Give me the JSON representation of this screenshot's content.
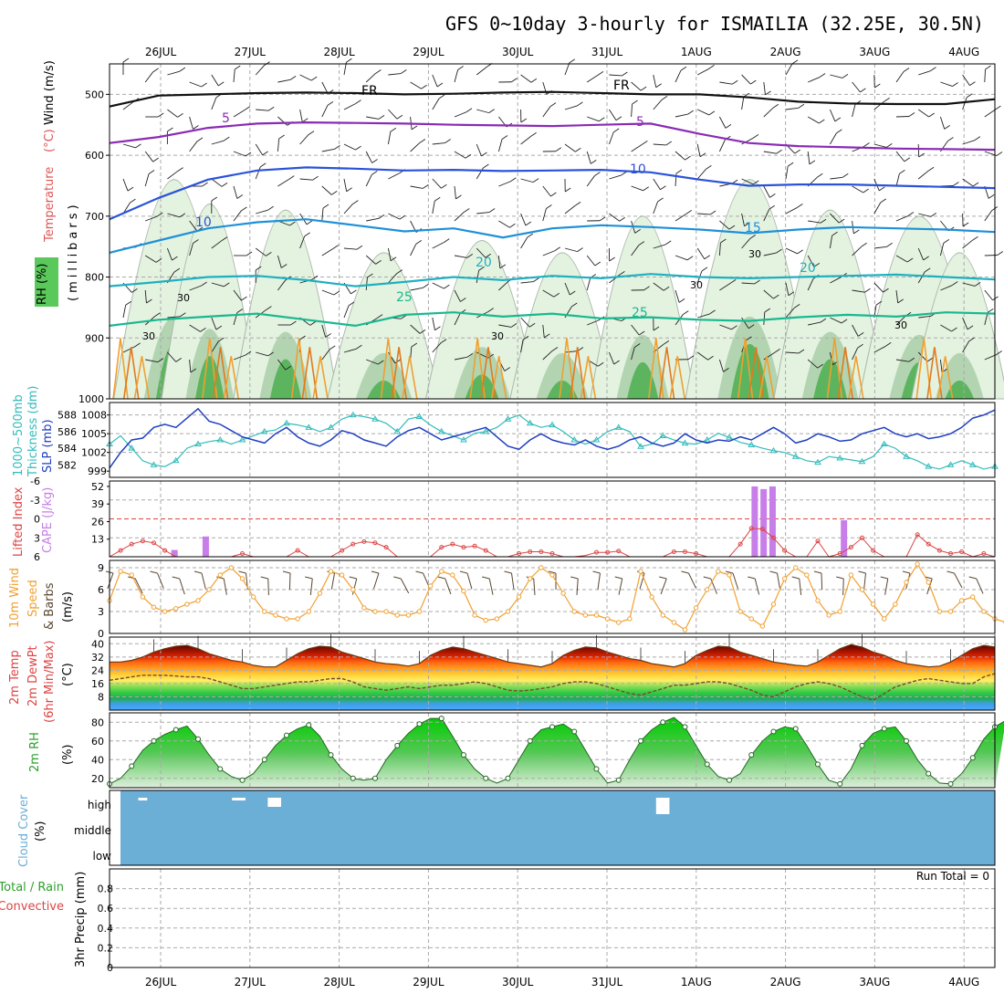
{
  "title": "GFS 0~10day 3-hourly for ISMAILIA (32.25E, 30.5N)",
  "colors": {
    "frame": "#000000",
    "grid": "#999999",
    "cloud_bg": "#6baed6",
    "wind_orange": "#f0a030",
    "barb": "#5a4632",
    "rh_green": "#2ca02c",
    "slp": "#1f3fbf",
    "thick": "#33bbbb",
    "cape": "#c77ee8",
    "li": "#dd4444"
  },
  "dates": [
    "26JUL",
    "27JUL",
    "28JUL",
    "29JUL",
    "30JUL",
    "31JUL",
    "1AUG",
    "2AUG",
    "3AUG",
    "4AUG"
  ],
  "chart_data": [
    {
      "type": "contour",
      "panel": "upper-air",
      "title": "Temperature (°C) / Wind (m/s) / RH (%)",
      "ylabels": [
        "Temperature",
        "(°C)",
        "Wind (m/s)",
        "RH (%)",
        "(millibars)"
      ],
      "yticks": [
        500,
        600,
        700,
        800,
        900,
        1000
      ],
      "ylim": [
        450,
        1000
      ],
      "contour_labels": [
        "FR",
        "FR",
        "5",
        "5",
        "10",
        "10",
        "15",
        "20",
        "20",
        "25",
        "25",
        "30",
        "30",
        "30",
        "30",
        "30",
        "30"
      ],
      "isotherms": [
        {
          "name": "FR",
          "color": "#111111",
          "p": [
            520,
            502,
            500,
            498,
            497,
            498,
            500,
            499,
            497,
            496,
            498,
            500,
            500,
            505,
            512,
            515,
            516,
            516,
            508
          ]
        },
        {
          "name": "5",
          "color": "#8a2bb5",
          "p": [
            580,
            570,
            555,
            548,
            546,
            547,
            548,
            550,
            551,
            552,
            550,
            548,
            565,
            580,
            585,
            587,
            589,
            590,
            591
          ]
        },
        {
          "name": "10",
          "color": "#2a52d8",
          "p": [
            705,
            670,
            640,
            625,
            620,
            622,
            625,
            624,
            626,
            625,
            624,
            628,
            640,
            650,
            648,
            648,
            650,
            652,
            654
          ]
        },
        {
          "name": "15",
          "color": "#1e90d8",
          "p": [
            760,
            740,
            720,
            710,
            705,
            715,
            725,
            720,
            735,
            720,
            715,
            718,
            722,
            728,
            722,
            718,
            720,
            722,
            726
          ]
        },
        {
          "name": "20",
          "color": "#1fb0c0",
          "p": [
            815,
            808,
            800,
            798,
            805,
            815,
            808,
            800,
            805,
            798,
            802,
            795,
            800,
            802,
            800,
            798,
            796,
            800,
            804
          ]
        },
        {
          "name": "25",
          "color": "#19b890",
          "p": [
            880,
            870,
            865,
            860,
            870,
            880,
            862,
            858,
            865,
            860,
            868,
            866,
            870,
            872,
            866,
            862,
            865,
            858,
            860
          ]
        }
      ]
    },
    {
      "type": "line",
      "panel": "slp-thickness",
      "ylabels": [
        "1000~500mb",
        "Thickness (dm)",
        "SLP (mb)"
      ],
      "left_ticks": [
        "588",
        "586",
        "584",
        "582"
      ],
      "right_ticks": [
        "1008",
        "1005",
        "1002",
        "999"
      ],
      "series": [
        {
          "name": "SLP (mb)",
          "ylim": [
            998,
            1010
          ],
          "values": [
            999.5,
            1002,
            1004,
            1004.3,
            1006,
            1006.5,
            1006,
            1007.5,
            1009,
            1007,
            1006.5,
            1005.5,
            1004.5,
            1004,
            1003.5,
            1005,
            1006,
            1004.5,
            1003.5,
            1003,
            1004,
            1005.5,
            1005,
            1004,
            1003.5,
            1003,
            1004.5,
            1005.5,
            1006,
            1005,
            1004,
            1004.5,
            1005,
            1005.5,
            1006,
            1004.5,
            1003,
            1002.5,
            1004,
            1005,
            1004,
            1003.5,
            1003.2,
            1004,
            1003,
            1002.5,
            1003,
            1004,
            1004.5,
            1003.5,
            1003,
            1003.5,
            1005,
            1004,
            1003.5,
            1004,
            1003.8,
            1004.5,
            1004,
            1005,
            1006,
            1005,
            1003.5,
            1004,
            1005,
            1004.5,
            1003.8,
            1004,
            1005,
            1005.5,
            1006,
            1005,
            1004.5,
            1005,
            1004.2,
            1004.5,
            1005,
            1006,
            1007.5,
            1008,
            1008.8
          ]
        },
        {
          "name": "1000~500mb Thickness (dm)",
          "ylim": [
            580.5,
            589.5
          ],
          "values": [
            584.5,
            585.5,
            584,
            582.5,
            582,
            581.8,
            582.5,
            584,
            584.5,
            584.8,
            585,
            584.5,
            585,
            585.5,
            586,
            586.2,
            587,
            586.8,
            586.5,
            586,
            586.5,
            587.5,
            588,
            587.8,
            587.5,
            587,
            586,
            587.5,
            587.8,
            586.8,
            586,
            585.5,
            585,
            585.8,
            586,
            586.5,
            587.5,
            588,
            587,
            586.5,
            586.8,
            586,
            585,
            584.5,
            585,
            586,
            586.5,
            586,
            584.2,
            584.5,
            585.5,
            585,
            584.6,
            584.5,
            585,
            585.8,
            585.3,
            584.7,
            584.4,
            584,
            583.7,
            583.5,
            583,
            582.5,
            582.3,
            583,
            582.8,
            582.6,
            582.4,
            583,
            584.5,
            584,
            583,
            582.5,
            581.8,
            581.5,
            582,
            582.5,
            582,
            581.5,
            581.8
          ]
        }
      ]
    },
    {
      "type": "bar",
      "panel": "cape-li",
      "ylabels": [
        "Lifted Index",
        "CAPE (J/kg)"
      ],
      "left_ticks": [
        "-6",
        "-3",
        "0",
        "3",
        "6"
      ],
      "right_ticks": [
        "52",
        "39",
        "26",
        "13",
        ""
      ],
      "cape_x_days": [
        0.15,
        0.5,
        6.65,
        6.75,
        6.85,
        7.65
      ],
      "cape_values": [
        5,
        15,
        52,
        50,
        52,
        27
      ],
      "li_ylim": [
        -6,
        6
      ],
      "li_values": [
        6,
        5,
        4,
        3.5,
        3.8,
        5,
        6,
        6,
        6,
        6,
        6,
        6,
        5.5,
        6,
        6,
        6,
        6,
        5,
        6,
        6,
        6,
        5,
        4,
        3.6,
        3.8,
        4.5,
        6,
        6,
        6,
        6,
        4.5,
        4,
        4.5,
        4.3,
        5,
        6,
        6,
        5.5,
        5.2,
        5.2,
        5.5,
        6,
        6,
        5.8,
        5.3,
        5.3,
        5.1,
        6,
        6,
        6,
        6,
        5.2,
        5.2,
        5.5,
        6,
        6,
        6,
        4,
        1.5,
        1.6,
        3,
        5,
        6,
        6,
        3.5,
        6,
        5.5,
        4.5,
        3,
        5,
        6,
        6,
        6,
        2.5,
        4,
        5,
        5.5,
        5.2,
        6,
        5.5,
        6
      ]
    },
    {
      "type": "line",
      "panel": "wind",
      "ylabels": [
        "10m Wind",
        "Speed",
        "& Barbs",
        "(m/s)"
      ],
      "yticks": [
        "9",
        "6",
        "3",
        "0"
      ],
      "ylim": [
        0,
        10
      ],
      "values": [
        4.5,
        8.5,
        8,
        5,
        3.6,
        3,
        3.4,
        4,
        4.5,
        6,
        8,
        9,
        7.5,
        5,
        3,
        2.5,
        2,
        2,
        3,
        5.5,
        8.5,
        8,
        6,
        3.5,
        3,
        3,
        2.5,
        2.5,
        3,
        6.5,
        8.5,
        8,
        5.8,
        2.5,
        1.8,
        2,
        3,
        5,
        7.5,
        9,
        8,
        5.5,
        3,
        2.5,
        2.5,
        2,
        1.5,
        2,
        8.5,
        5,
        2.5,
        1.5,
        0.5,
        3.5,
        6,
        8.5,
        8,
        3,
        2,
        1,
        4,
        7.5,
        9,
        8,
        4.5,
        2.5,
        3,
        8,
        6,
        4,
        2,
        4,
        7,
        9.5,
        7,
        3,
        3,
        4.5,
        5,
        3,
        2,
        1.5
      ]
    },
    {
      "type": "area",
      "panel": "temperature",
      "ylabels": [
        "2m Temp",
        "2m DewPt",
        "(6hr Min/Max)",
        "(°C)"
      ],
      "yticks": [
        "40",
        "32",
        "24",
        "16",
        "8"
      ],
      "ylim": [
        0,
        44
      ],
      "temp_values": [
        29,
        29,
        30,
        32,
        35,
        37,
        38.5,
        39,
        37,
        34,
        32,
        30,
        29,
        27,
        26,
        26,
        30,
        34,
        37,
        38.5,
        38,
        35,
        33,
        31,
        29,
        28,
        27.5,
        26.5,
        28,
        33,
        36,
        38,
        37,
        35,
        33,
        31,
        29,
        28,
        27,
        26,
        28,
        33,
        36,
        38,
        37.5,
        35,
        33,
        31,
        30,
        28,
        27,
        26,
        28,
        33,
        36,
        38.5,
        38,
        35,
        33,
        31,
        29,
        28,
        27,
        26.5,
        29,
        33,
        37,
        39.5,
        38,
        35,
        33,
        30,
        28,
        27,
        26,
        26.5,
        29,
        33,
        37,
        39,
        38
      ],
      "dewpoint_values": [
        18,
        19,
        20,
        21,
        21,
        21,
        20.5,
        20,
        20,
        19,
        17,
        15,
        13,
        13,
        14,
        15,
        16,
        17,
        17,
        18,
        19,
        19,
        17,
        14,
        13,
        12,
        13,
        14,
        13,
        14,
        15,
        15,
        16,
        17,
        16,
        14,
        12,
        11.5,
        12,
        13,
        14,
        16,
        17,
        17,
        16,
        14,
        12,
        10,
        9,
        11,
        13,
        15,
        15,
        16,
        17,
        17,
        16,
        14,
        12,
        9,
        8,
        11,
        14,
        16,
        17,
        16,
        14,
        11,
        8,
        6,
        10,
        14,
        16,
        18,
        19,
        18,
        17,
        16,
        16,
        20,
        22
      ]
    },
    {
      "type": "area",
      "panel": "rh",
      "ylabels": [
        "2m RH",
        "(%)"
      ],
      "yticks": [
        "80",
        "60",
        "40",
        "20"
      ],
      "ylim": [
        10,
        90
      ],
      "values": [
        14,
        20,
        33,
        50,
        60,
        67,
        72,
        76,
        62,
        45,
        30,
        22,
        18,
        25,
        40,
        55,
        66,
        73,
        77,
        65,
        45,
        30,
        20,
        18,
        20,
        40,
        55,
        68,
        78,
        84,
        84,
        65,
        45,
        30,
        20,
        15,
        20,
        40,
        60,
        72,
        75,
        78,
        70,
        50,
        30,
        15,
        18,
        40,
        60,
        72,
        80,
        85,
        75,
        55,
        35,
        22,
        18,
        25,
        45,
        60,
        70,
        75,
        73,
        55,
        35,
        18,
        14,
        30,
        55,
        68,
        73,
        75,
        60,
        40,
        25,
        15,
        14,
        25,
        42,
        62,
        75,
        82
      ]
    },
    {
      "type": "bar",
      "panel": "cloud-cover",
      "ylabels": [
        "Cloud Cover",
        "(%)"
      ],
      "levels": [
        "high",
        "middle",
        "low"
      ],
      "high_blocks_days": [
        [
          -0.25,
          -0.15
        ],
        [
          0.8,
          0.95
        ],
        [
          1.2,
          1.35
        ],
        [
          5.55,
          5.7
        ]
      ]
    },
    {
      "type": "bar",
      "panel": "precip",
      "ylabels": [
        "Total / Rain",
        "Convective",
        "3hr Precip (mm)"
      ],
      "yticks": [
        "0.8",
        "0.6",
        "0.4",
        "0.2",
        "0"
      ],
      "ylim": [
        0,
        1
      ],
      "values": [],
      "run_total_label": "Run Total = 0"
    }
  ]
}
